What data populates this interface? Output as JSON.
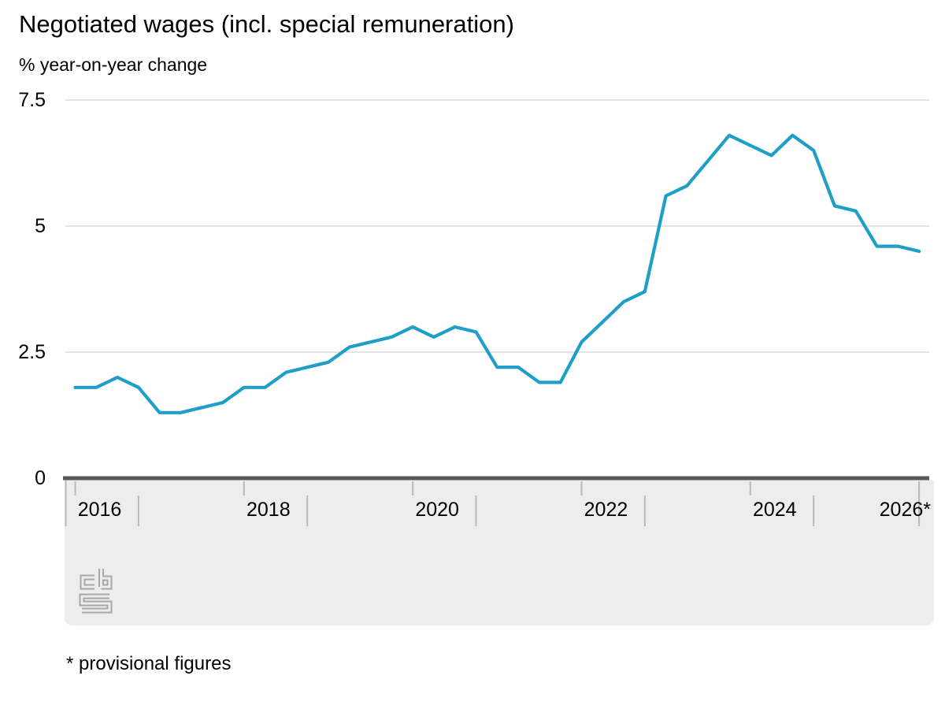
{
  "chart": {
    "title": "Negotiated wages (incl. special remuneration)",
    "subtitle": "% year-on-year change",
    "footnote": "* provisional figures",
    "logo_text": "cbs"
  },
  "chart_data": {
    "type": "line",
    "title": "Negotiated wages (incl. special remuneration)",
    "ylabel": "% year-on-year change",
    "xlabel": "",
    "ylim": [
      0,
      7.5
    ],
    "y_ticks": [
      0,
      2.5,
      5,
      7.5
    ],
    "y_tick_labels": [
      "0",
      "2.5",
      "5",
      "7.5"
    ],
    "x_tick_labels": [
      "2016",
      "2018",
      "2020",
      "2022",
      "2024",
      "2026*"
    ],
    "grid": "horizontal",
    "legend_position": "none",
    "x_unit": "quarter",
    "x": [
      "2016-Q1",
      "2016-Q2",
      "2016-Q3",
      "2016-Q4",
      "2017-Q1",
      "2017-Q2",
      "2017-Q3",
      "2017-Q4",
      "2018-Q1",
      "2018-Q2",
      "2018-Q3",
      "2018-Q4",
      "2019-Q1",
      "2019-Q2",
      "2019-Q3",
      "2019-Q4",
      "2020-Q1",
      "2020-Q2",
      "2020-Q3",
      "2020-Q4",
      "2021-Q1",
      "2021-Q2",
      "2021-Q3",
      "2021-Q4",
      "2022-Q1",
      "2022-Q2",
      "2022-Q3",
      "2022-Q4",
      "2023-Q1",
      "2023-Q2",
      "2023-Q3",
      "2023-Q4",
      "2024-Q1",
      "2024-Q2",
      "2024-Q3",
      "2024-Q4",
      "2025-Q1",
      "2025-Q2",
      "2025-Q3",
      "2025-Q4",
      "2026-Q1"
    ],
    "series": [
      {
        "name": "Negotiated wages (incl. special remuneration)",
        "values": [
          1.8,
          1.8,
          2.0,
          1.8,
          1.3,
          1.3,
          1.4,
          1.5,
          1.8,
          1.8,
          2.1,
          2.2,
          2.3,
          2.6,
          2.7,
          2.8,
          3.0,
          2.8,
          3.0,
          2.9,
          2.2,
          2.2,
          1.9,
          1.9,
          2.7,
          3.1,
          3.5,
          3.7,
          5.6,
          5.8,
          6.3,
          6.8,
          6.6,
          6.4,
          6.8,
          6.5,
          5.4,
          5.3,
          4.6,
          4.6,
          4.5
        ]
      }
    ]
  },
  "colors": {
    "line": "#1f9fc8",
    "grid": "#c9c9c9",
    "axis": "#58585b",
    "tick": "#b9b9b9",
    "band": "#ededed",
    "logo": "#a8a8a8",
    "text": "#000000"
  }
}
